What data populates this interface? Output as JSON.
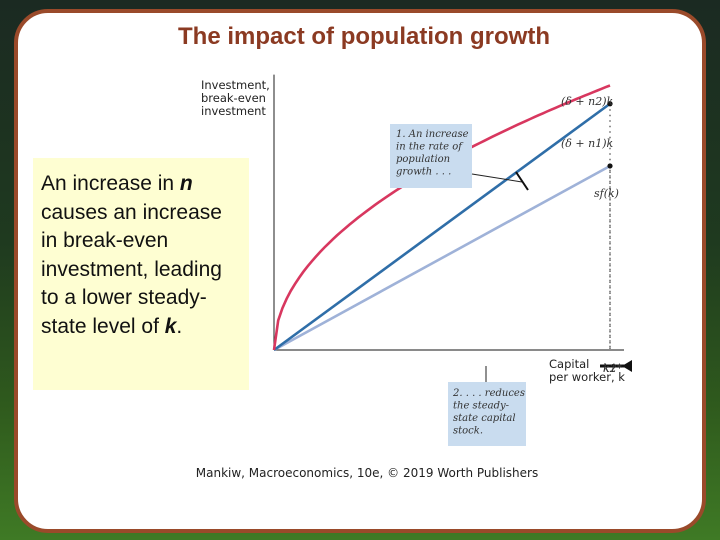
{
  "title": "The impact of population growth",
  "description": {
    "line1": "An increase in ",
    "n": "n",
    "line2": " causes an increase in break-even investment, leading to a lower steady-state level of ",
    "k": "k",
    "end": "."
  },
  "chart_data": {
    "type": "line",
    "ylabel": [
      "Investment,",
      "break-even",
      "investment"
    ],
    "xlabel": [
      "Capital",
      "per worker, k"
    ],
    "xlim": [
      0,
      1
    ],
    "ylim": [
      0,
      1
    ],
    "grid": false,
    "series": [
      {
        "name": "(δ + n2)k",
        "slope": 0.95,
        "color": "#2f6ea8"
      },
      {
        "name": "(δ + n1)k",
        "slope": 0.71,
        "color": "#9fb2d8"
      },
      {
        "name": "sf(k)",
        "exponent": 0.5,
        "scale": 1.0,
        "color": "#d8375f"
      }
    ],
    "ticks": [
      "k2*",
      "k1*"
    ],
    "annotations": {
      "top": [
        "1. An increase",
        "in the rate of",
        "population",
        "growth . . ."
      ],
      "bottom": [
        "2. . . . reduces",
        "the steady-",
        "state capital",
        "stock."
      ]
    },
    "annotation_bg": "#c9dcef"
  },
  "credit": "Mankiw, Macroeconomics, 10e, © 2019 Worth Publishers"
}
